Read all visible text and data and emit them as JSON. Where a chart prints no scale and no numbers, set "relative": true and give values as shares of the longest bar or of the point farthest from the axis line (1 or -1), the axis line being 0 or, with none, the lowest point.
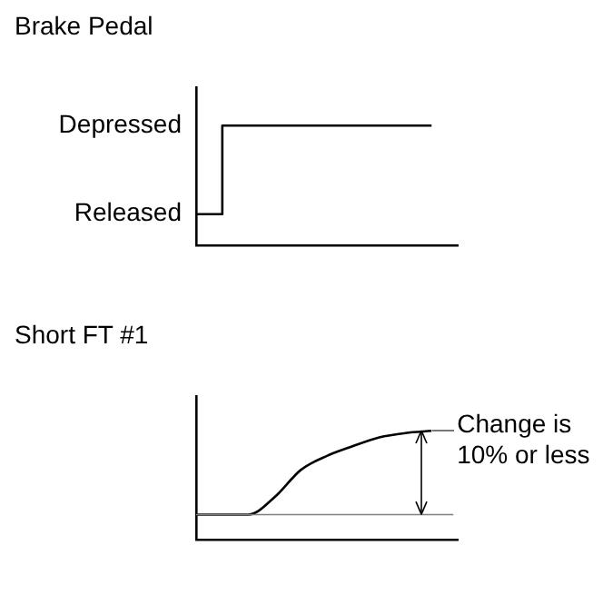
{
  "chart_data": [
    {
      "type": "step",
      "title": "Brake Pedal",
      "categories": [
        null,
        null,
        null,
        null,
        null,
        null,
        null,
        null,
        null,
        null,
        null
      ],
      "values": [
        0.26,
        0.26,
        1,
        1,
        1,
        1,
        1,
        1,
        1,
        1,
        null
      ],
      "color": "#000000",
      "relative": true,
      "tick_labels": false,
      "annotations": [
        "Depressed",
        "Released"
      ]
    },
    {
      "type": "line",
      "title": "Short FT #1",
      "categories": [
        null,
        null,
        null,
        null,
        null,
        null,
        null,
        null,
        null,
        null,
        null
      ],
      "values": [
        0.23,
        0.23,
        0.23,
        0.39,
        0.64,
        0.77,
        0.86,
        0.94,
        0.98,
        1,
        null
      ],
      "color": "#000000",
      "relative": true,
      "tick_labels": false,
      "ref_lines": [
        {
          "axis": "y",
          "value": 0.23,
          "color": "#808080"
        }
      ],
      "annotations": [
        "Change is 10% or less"
      ]
    }
  ]
}
